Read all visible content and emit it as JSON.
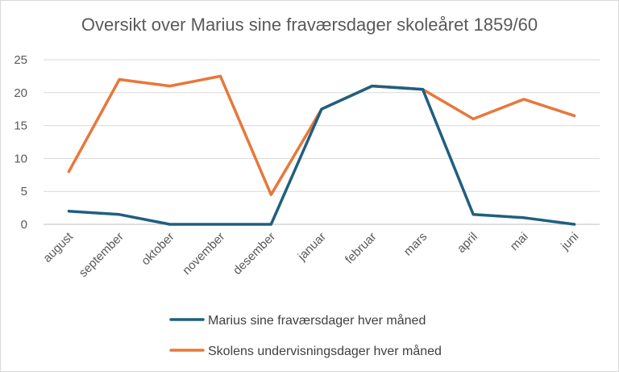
{
  "chart_data": {
    "type": "line",
    "title": "Oversikt over Marius sine fraværsdager skoleåret 1859/60",
    "categories": [
      "august",
      "september",
      "oktober",
      "november",
      "desember",
      "januar",
      "februar",
      "mars",
      "april",
      "mai",
      "juni"
    ],
    "series": [
      {
        "name": "Marius sine fraværsdager hver måned",
        "color": "#1f5f7f",
        "values": [
          2,
          1.5,
          0,
          0,
          0,
          17.5,
          21,
          20.5,
          1.5,
          1,
          0
        ]
      },
      {
        "name": "Skolens undervisningsdager hver måned",
        "color": "#e8773a",
        "values": [
          8,
          22,
          21,
          22.5,
          4.5,
          17.5,
          21,
          20.5,
          16,
          19,
          16.5
        ]
      }
    ],
    "yticks": [
      0,
      5,
      10,
      15,
      20,
      25
    ],
    "ylim": [
      0,
      25
    ],
    "grid": true,
    "legend_position": "bottom"
  }
}
